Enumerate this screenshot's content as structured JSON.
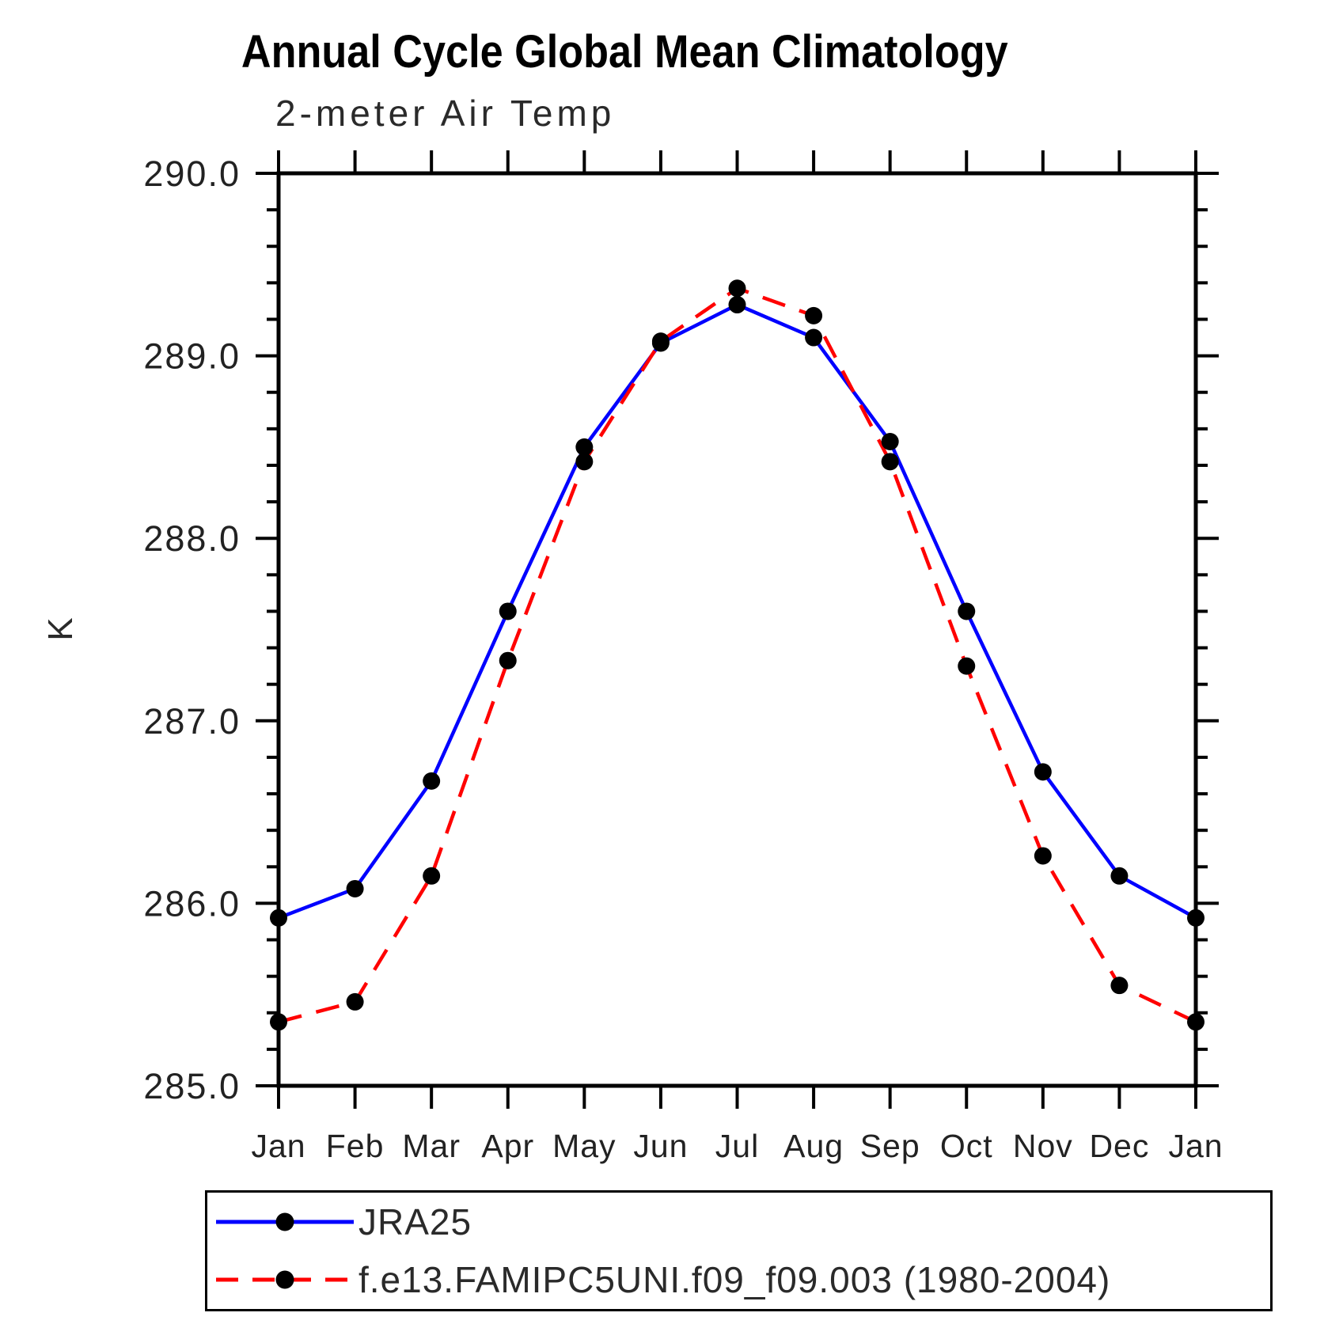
{
  "header": {
    "title": "Annual Cycle Global Mean Climatology",
    "subtitle": "2-meter Air Temp"
  },
  "y_axis": {
    "label": "K",
    "tick_labels": [
      "290.0",
      "289.0",
      "288.0",
      "287.0",
      "286.0",
      "285.0"
    ]
  },
  "chart_data": {
    "type": "line",
    "title": "Annual Cycle Global Mean Climatology",
    "subtitle": "2-meter Air Temp",
    "xlabel": "",
    "ylabel": "K",
    "categories": [
      "Jan",
      "Feb",
      "Mar",
      "Apr",
      "May",
      "Jun",
      "Jul",
      "Aug",
      "Sep",
      "Oct",
      "Nov",
      "Dec",
      "Jan"
    ],
    "ylim": [
      285.0,
      290.0
    ],
    "yticks": [
      285.0,
      286.0,
      287.0,
      288.0,
      289.0,
      290.0
    ],
    "ytick_decimals": 1,
    "minor_tick_interval": 0.2,
    "grid": false,
    "legend_position": "bottom",
    "marker": "filled-circle",
    "marker_color": "#000000",
    "axis_color": "#000000",
    "series": [
      {
        "name": "JRA25",
        "color": "#0000ff",
        "line_style": "solid",
        "values": [
          285.92,
          286.08,
          286.67,
          287.6,
          288.5,
          289.07,
          289.28,
          289.1,
          288.53,
          287.6,
          286.72,
          286.15,
          285.92
        ]
      },
      {
        "name": "f.e13.FAMIPC5UNI.f09_f09.003 (1980-2004)",
        "color": "#ff0000",
        "line_style": "dashed",
        "values": [
          285.35,
          285.46,
          286.15,
          287.33,
          288.42,
          289.08,
          289.37,
          289.22,
          288.42,
          287.3,
          286.26,
          285.55,
          285.35
        ]
      }
    ]
  }
}
